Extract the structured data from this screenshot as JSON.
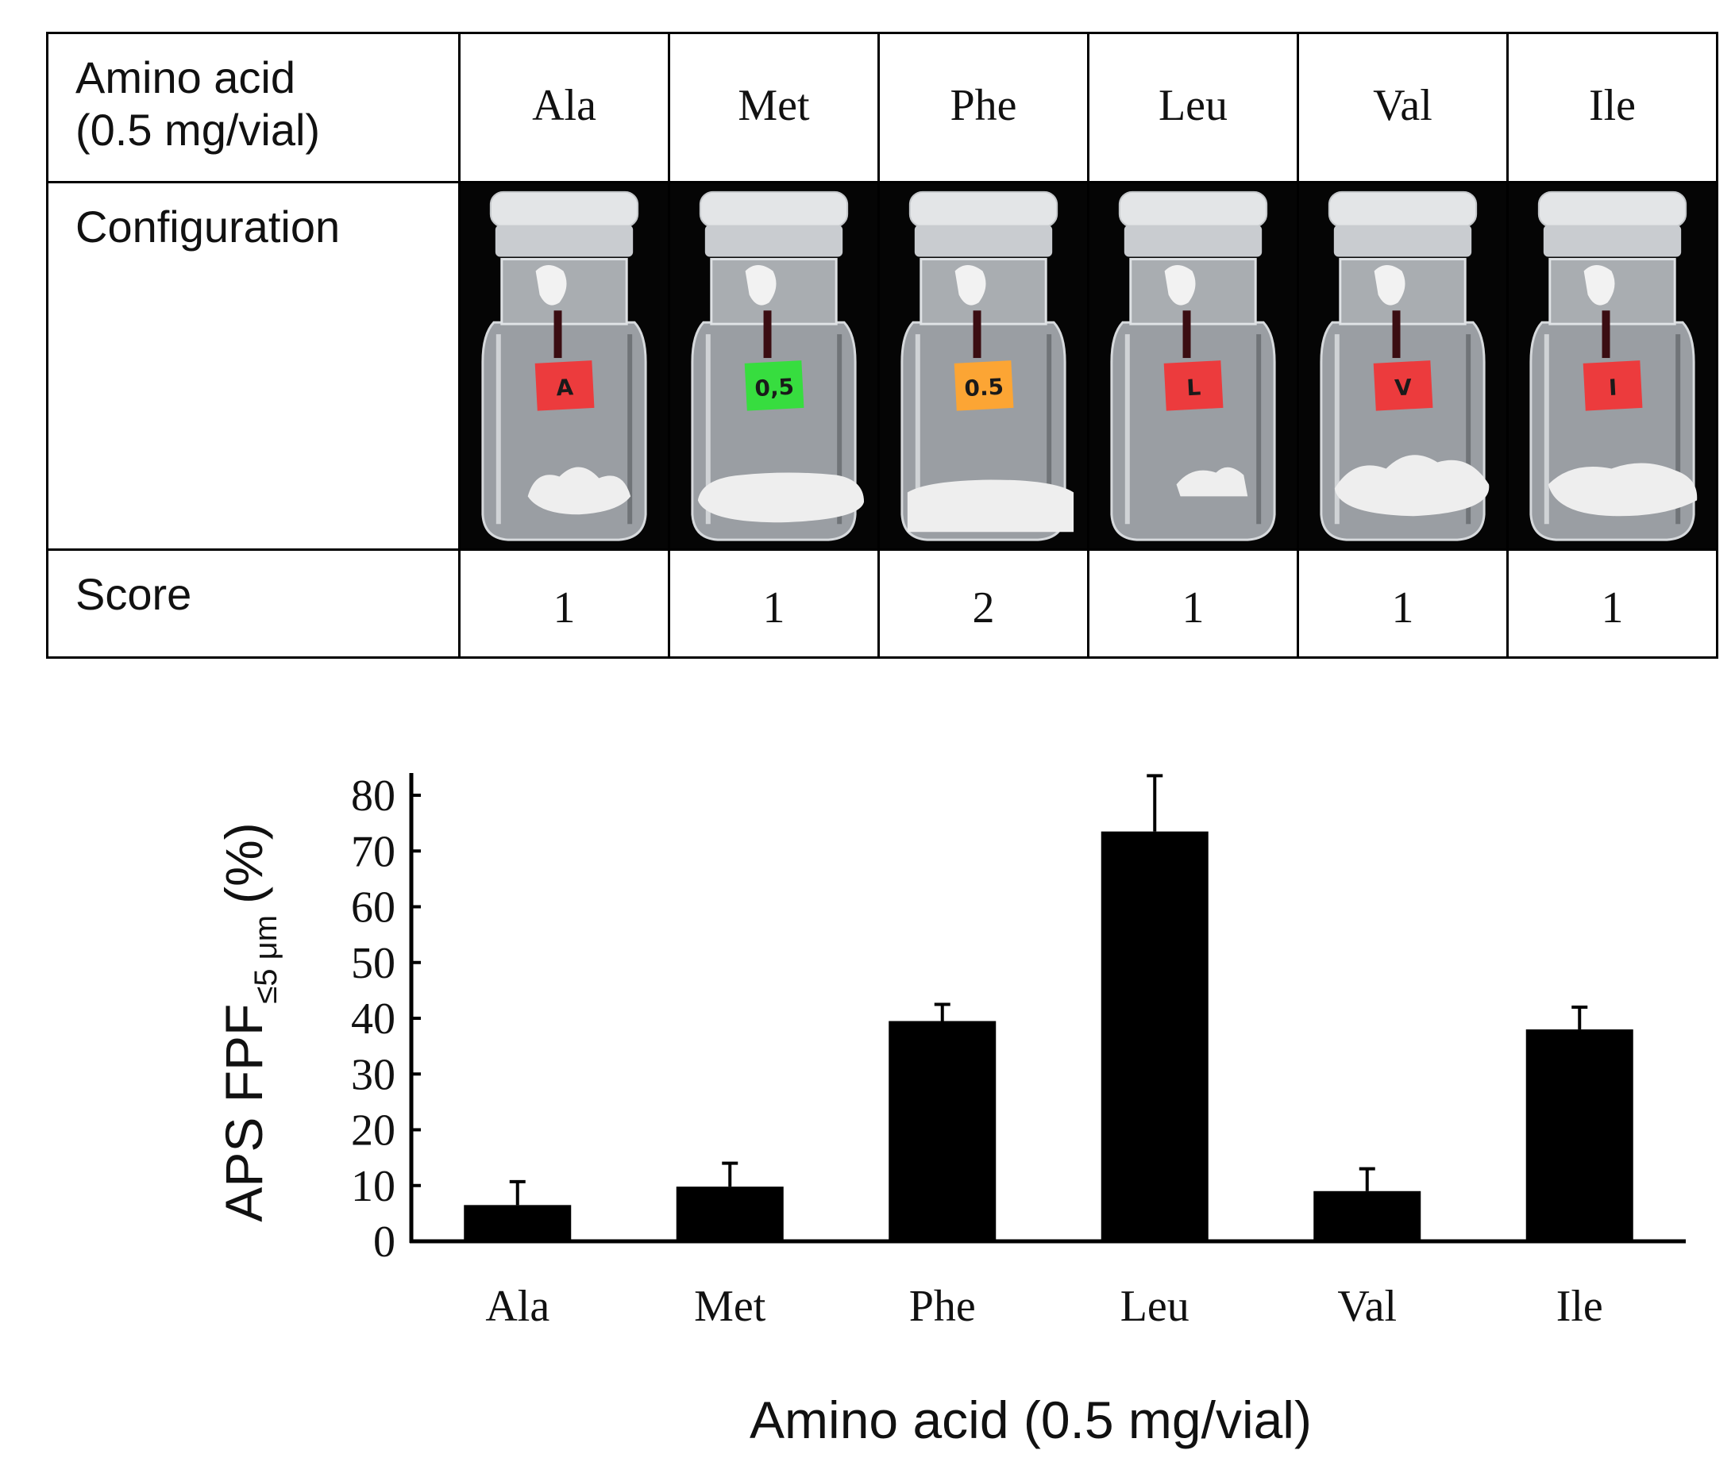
{
  "table": {
    "row_labels": {
      "amino_acid_line1": "Amino acid",
      "amino_acid_line2": "(0.5 mg/vial)",
      "configuration": "Configuration",
      "score": "Score"
    },
    "columns": [
      {
        "name": "Ala",
        "label_text": "A",
        "label_color": "#ec3b3d",
        "score": "1"
      },
      {
        "name": "Met",
        "label_text": "0,5",
        "label_color": "#37dd3f",
        "score": "1"
      },
      {
        "name": "Phe",
        "label_text": "0.5",
        "label_color": "#fca534",
        "score": "2"
      },
      {
        "name": "Leu",
        "label_text": "L",
        "label_color": "#ec3b3d",
        "score": "1"
      },
      {
        "name": "Val",
        "label_text": "V",
        "label_color": "#ec3b3d",
        "score": "1"
      },
      {
        "name": "Ile",
        "label_text": "I",
        "label_color": "#ec3b3d",
        "score": "1"
      }
    ]
  },
  "chart_data": {
    "type": "bar",
    "categories": [
      "Ala",
      "Met",
      "Phe",
      "Leu",
      "Val",
      "Ile"
    ],
    "values": [
      6.5,
      9.8,
      39.5,
      73.5,
      9.0,
      38.0
    ],
    "errors": [
      4.2,
      4.2,
      3.0,
      10.0,
      4.0,
      4.0
    ],
    "xlabel": "Amino acid (0.5 mg/vial)",
    "ylabel_main": "APS FPF",
    "ylabel_sub": "≤5 μm",
    "ylabel_unit": "(%)",
    "ylim": [
      0,
      80
    ],
    "yticks": [
      0,
      10,
      20,
      30,
      40,
      50,
      60,
      70,
      80
    ],
    "bar_color": "#000000",
    "grid": false
  }
}
